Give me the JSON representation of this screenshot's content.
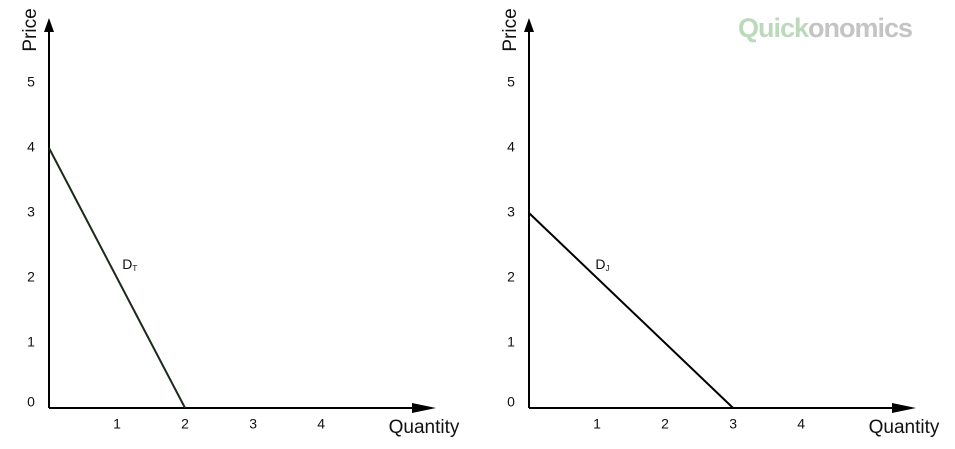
{
  "brand": [
    "Quick",
    "onomics"
  ],
  "chart_data": [
    {
      "type": "line",
      "x_label": "Quantity",
      "y_label": "Price",
      "x": [
        0,
        2
      ],
      "series": [
        {
          "label": "D",
          "label_sub": "T",
          "color": "#1c2a1c",
          "values": [
            4,
            0
          ]
        }
      ],
      "xlim": [
        0,
        5.6
      ],
      "ylim": [
        0,
        6
      ],
      "xticks": [
        1,
        2,
        3,
        4
      ],
      "yticks": [
        0,
        1,
        2,
        3,
        4,
        5
      ]
    },
    {
      "type": "line",
      "x_label": "Quantity",
      "y_label": "Price",
      "x": [
        0,
        3
      ],
      "series": [
        {
          "label": "D",
          "label_sub": "J",
          "color": "#000000",
          "values": [
            3,
            0
          ]
        }
      ],
      "xlim": [
        0,
        5.6
      ],
      "ylim": [
        0,
        6
      ],
      "xticks": [
        1,
        2,
        3,
        4
      ],
      "yticks": [
        0,
        1,
        2,
        3,
        4,
        5
      ]
    }
  ]
}
